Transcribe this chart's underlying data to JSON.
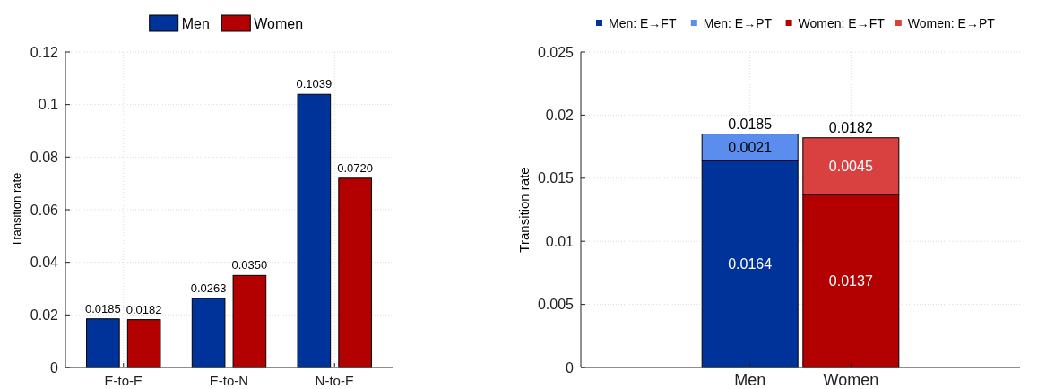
{
  "chart_data": [
    {
      "type": "bar",
      "ylabel": "Transition rate",
      "categories": [
        "E-to-E",
        "E-to-N",
        "N-to-E"
      ],
      "ylim": [
        0,
        0.12
      ],
      "yticks": [
        0,
        0.02,
        0.04,
        0.06,
        0.08,
        0.1,
        0.12
      ],
      "grid": true,
      "legend": "top",
      "series": [
        {
          "name": "Men",
          "color": "#003399",
          "values": [
            0.0185,
            0.0263,
            0.1039
          ],
          "value_labels": [
            "0.0185",
            "0.0263",
            "0.1039"
          ]
        },
        {
          "name": "Women",
          "color": "#b30000",
          "values": [
            0.0182,
            0.035,
            0.072
          ],
          "value_labels": [
            "0.0182",
            "0.0350",
            "0.0720"
          ]
        }
      ]
    },
    {
      "type": "bar",
      "stacked": true,
      "ylabel": "Transition rate",
      "categories": [
        "Men",
        "Women"
      ],
      "ylim": [
        0,
        0.025
      ],
      "yticks": [
        0,
        0.005,
        0.01,
        0.015,
        0.02,
        0.025
      ],
      "grid": true,
      "legend": "top",
      "totals": [
        "0.0185",
        "0.0182"
      ],
      "series": [
        {
          "name": "Men: E→FT",
          "color": "#003399",
          "values": [
            0.0164,
            null
          ],
          "value_labels": [
            "0.0164",
            null
          ]
        },
        {
          "name": "Men: E→PT",
          "color": "#5b8def",
          "values": [
            0.0021,
            null
          ],
          "value_labels": [
            "0.0021",
            null
          ]
        },
        {
          "name": "Women: E→FT",
          "color": "#b30000",
          "values": [
            null,
            0.0137
          ],
          "value_labels": [
            null,
            "0.0137"
          ]
        },
        {
          "name": "Women: E→PT",
          "color": "#d94040",
          "values": [
            null,
            0.0045
          ],
          "value_labels": [
            null,
            "0.0045"
          ]
        }
      ]
    }
  ]
}
